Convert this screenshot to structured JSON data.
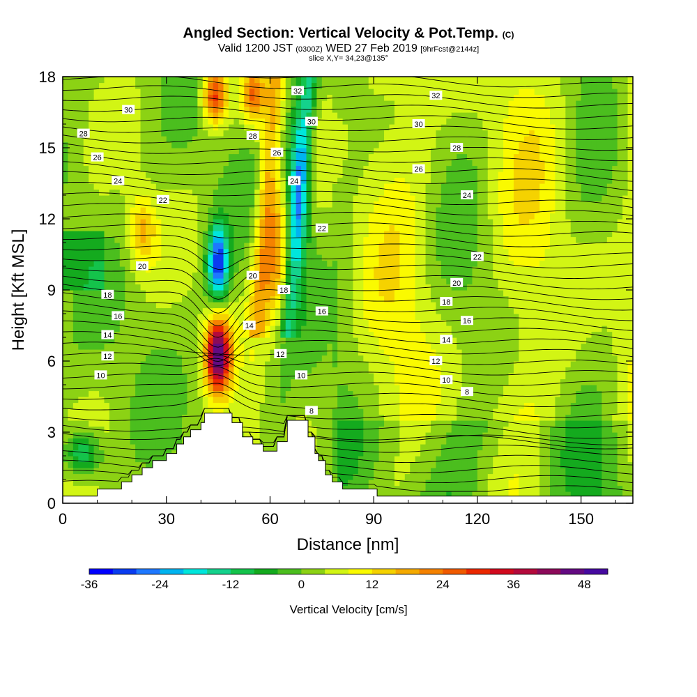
{
  "title": {
    "main": "Angled Section: Vertical Velocity & Pot.Temp.",
    "main_suffix": "(C)",
    "valid_prefix": "Valid 1200 JST",
    "valid_utc": "(0300Z)",
    "valid_date": "WED 27 Feb 2019",
    "forecast": "[9hrFcst@2144z]",
    "slice": "slice X,Y= 34,23@135°"
  },
  "chart_data": {
    "type": "heatmap",
    "xlabel": "Distance [nm]",
    "ylabel": "Height [Kft MSL]",
    "xlim": [
      0,
      165
    ],
    "ylim": [
      0,
      18
    ],
    "x_ticks": [
      0,
      30,
      60,
      90,
      120,
      150
    ],
    "y_ticks": [
      0,
      3,
      6,
      9,
      12,
      15,
      18
    ],
    "colorbar": {
      "title": "Vertical Velocity [cm/s]",
      "min": -36,
      "max": 54,
      "step": 4,
      "tick_values": [
        -36,
        -24,
        -12,
        0,
        12,
        24,
        36,
        48
      ],
      "tick_labels": [
        "-36",
        "-24",
        "-12",
        "0",
        "12",
        "24",
        "36",
        "48"
      ],
      "colors": [
        "#0000ff",
        "#0a3cf0",
        "#1e78ff",
        "#00b4f0",
        "#00e6dc",
        "#14d28c",
        "#14c34b",
        "#14aa1e",
        "#4bbe1e",
        "#8cd214",
        "#d2f514",
        "#fafa00",
        "#f5d200",
        "#f5aa00",
        "#f58200",
        "#f05a00",
        "#eb2800",
        "#d20a1e",
        "#b40a3c",
        "#8c0a5a",
        "#640a82",
        "#460aa0"
      ]
    },
    "updraft_cores": [
      {
        "x": 45,
        "z": 6.3,
        "w": 44
      },
      {
        "x": 44,
        "z": 17.2,
        "w": 28
      },
      {
        "x": 55,
        "z": 17.2,
        "w": 20
      },
      {
        "x": 62,
        "z": 10.5,
        "w": 18
      },
      {
        "x": 23,
        "z": 11.5,
        "w": 14
      }
    ],
    "downdraft_cores": [
      {
        "x": 45,
        "z": 10.1,
        "w": -34
      },
      {
        "x": 68,
        "z": 13.5,
        "w": -18
      },
      {
        "x": 6,
        "z": 2.1,
        "w": -18
      }
    ],
    "terrain": [
      [
        0,
        0.3
      ],
      [
        10,
        0.3
      ],
      [
        10,
        0.6
      ],
      [
        17,
        0.6
      ],
      [
        17,
        0.9
      ],
      [
        20,
        0.9
      ],
      [
        20,
        1.2
      ],
      [
        23,
        1.2
      ],
      [
        23,
        1.5
      ],
      [
        26,
        1.5
      ],
      [
        26,
        1.8
      ],
      [
        30,
        1.8
      ],
      [
        30,
        2.1
      ],
      [
        33,
        2.1
      ],
      [
        33,
        2.5
      ],
      [
        35,
        2.5
      ],
      [
        35,
        2.8
      ],
      [
        37,
        2.8
      ],
      [
        37,
        3.1
      ],
      [
        40,
        3.1
      ],
      [
        40,
        3.4
      ],
      [
        41,
        3.4
      ],
      [
        41,
        3.8
      ],
      [
        49,
        3.8
      ],
      [
        49,
        3.4
      ],
      [
        52,
        3.4
      ],
      [
        52,
        2.8
      ],
      [
        55,
        2.8
      ],
      [
        55,
        2.5
      ],
      [
        58,
        2.5
      ],
      [
        58,
        2.2
      ],
      [
        62,
        2.2
      ],
      [
        62,
        2.6
      ],
      [
        65,
        2.6
      ],
      [
        65,
        3.5
      ],
      [
        71,
        3.5
      ],
      [
        71,
        2.8
      ],
      [
        73,
        2.8
      ],
      [
        73,
        2.1
      ],
      [
        74,
        2.1
      ],
      [
        74,
        1.8
      ],
      [
        76,
        1.8
      ],
      [
        76,
        1.2
      ],
      [
        78,
        1.2
      ],
      [
        78,
        0.9
      ],
      [
        81,
        0.9
      ],
      [
        81,
        0.6
      ],
      [
        91,
        0.6
      ],
      [
        91,
        0.3
      ],
      [
        165,
        0.3
      ]
    ],
    "theta_contours": [
      {
        "value": 8,
        "label": "8",
        "labels_at": [
          [
            72,
            3.9
          ],
          [
            117,
            4.7
          ]
        ]
      },
      {
        "value": 10,
        "label": "10",
        "labels_at": [
          [
            11,
            5.4
          ],
          [
            69,
            5.4
          ],
          [
            111,
            5.2
          ]
        ]
      },
      {
        "value": 12,
        "label": "12",
        "labels_at": [
          [
            13,
            6.2
          ],
          [
            63,
            6.3
          ],
          [
            108,
            6.0
          ]
        ]
      },
      {
        "value": 14,
        "label": "14",
        "labels_at": [
          [
            13,
            7.1
          ],
          [
            54,
            7.5
          ],
          [
            111,
            6.9
          ]
        ]
      },
      {
        "value": 16,
        "label": "16",
        "labels_at": [
          [
            16,
            7.9
          ],
          [
            75,
            8.1
          ],
          [
            117,
            7.7
          ]
        ]
      },
      {
        "value": 18,
        "label": "18",
        "labels_at": [
          [
            13,
            8.8
          ],
          [
            64,
            9.0
          ],
          [
            111,
            8.5
          ]
        ]
      },
      {
        "value": 20,
        "label": "20",
        "labels_at": [
          [
            23,
            10.0
          ],
          [
            55,
            9.6
          ],
          [
            114,
            9.3
          ]
        ]
      },
      {
        "value": 22,
        "label": "22",
        "labels_at": [
          [
            29,
            12.8
          ],
          [
            75,
            11.6
          ],
          [
            120,
            10.4
          ]
        ]
      },
      {
        "value": 24,
        "label": "24",
        "labels_at": [
          [
            16,
            13.6
          ],
          [
            67,
            13.6
          ],
          [
            117,
            13.0
          ]
        ]
      },
      {
        "value": 26,
        "label": "26",
        "labels_at": [
          [
            10,
            14.6
          ],
          [
            62,
            14.8
          ],
          [
            103,
            14.1
          ]
        ]
      },
      {
        "value": 28,
        "label": "28",
        "labels_at": [
          [
            6,
            15.6
          ],
          [
            55,
            15.5
          ],
          [
            114,
            15.0
          ]
        ]
      },
      {
        "value": 30,
        "label": "30",
        "labels_at": [
          [
            19,
            16.6
          ],
          [
            72,
            16.1
          ],
          [
            103,
            16.0
          ]
        ]
      },
      {
        "value": 32,
        "label": "32",
        "labels_at": [
          [
            68,
            17.4
          ],
          [
            108,
            17.2
          ]
        ]
      }
    ]
  }
}
